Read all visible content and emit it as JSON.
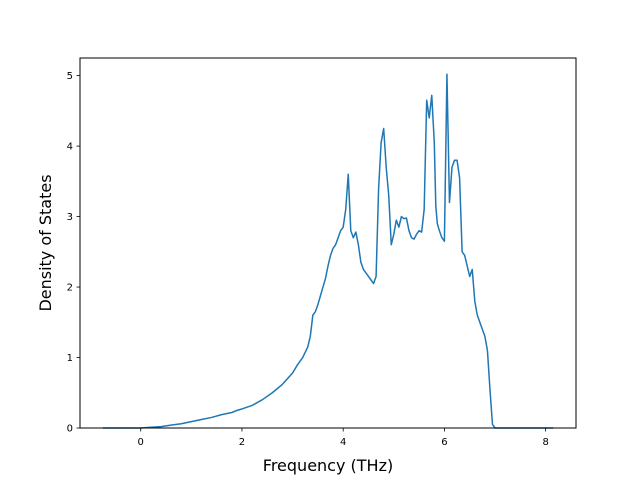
{
  "chart_data": {
    "type": "line",
    "title": "",
    "xlabel": "Frequency (THz)",
    "ylabel": "Density of States",
    "xlim": [
      -1.2,
      8.6
    ],
    "ylim": [
      0,
      5.25
    ],
    "xticks": [
      0,
      2,
      4,
      6,
      8
    ],
    "yticks": [
      0,
      1,
      2,
      3,
      4,
      5
    ],
    "grid": false,
    "legend": "none",
    "series": [
      {
        "color": "#1f77b4",
        "x": [
          -0.75,
          -0.4,
          -0.1,
          0.0,
          0.2,
          0.4,
          0.6,
          0.8,
          1.0,
          1.2,
          1.4,
          1.6,
          1.8,
          1.9,
          2.0,
          2.2,
          2.4,
          2.6,
          2.8,
          3.0,
          3.1,
          3.2,
          3.3,
          3.35,
          3.4,
          3.45,
          3.5,
          3.6,
          3.65,
          3.7,
          3.75,
          3.8,
          3.85,
          3.9,
          3.95,
          4.0,
          4.05,
          4.1,
          4.15,
          4.2,
          4.25,
          4.3,
          4.35,
          4.4,
          4.45,
          4.5,
          4.55,
          4.6,
          4.65,
          4.7,
          4.75,
          4.8,
          4.85,
          4.9,
          4.95,
          5.0,
          5.05,
          5.1,
          5.15,
          5.2,
          5.25,
          5.3,
          5.35,
          5.4,
          5.45,
          5.5,
          5.55,
          5.6,
          5.65,
          5.7,
          5.75,
          5.8,
          5.83,
          5.86,
          5.9,
          5.95,
          6.0,
          6.05,
          6.1,
          6.15,
          6.2,
          6.25,
          6.3,
          6.35,
          6.4,
          6.45,
          6.5,
          6.55,
          6.6,
          6.65,
          6.7,
          6.75,
          6.8,
          6.85,
          6.9,
          6.95,
          7.0,
          7.1,
          7.2,
          7.25,
          7.3,
          7.35,
          7.4,
          7.5,
          7.8,
          8.15
        ],
        "y": [
          0.0,
          0.0,
          0.0,
          0.0,
          0.01,
          0.02,
          0.04,
          0.06,
          0.09,
          0.12,
          0.15,
          0.19,
          0.22,
          0.25,
          0.27,
          0.32,
          0.4,
          0.5,
          0.62,
          0.78,
          0.9,
          1.0,
          1.15,
          1.3,
          1.6,
          1.65,
          1.75,
          2.0,
          2.12,
          2.3,
          2.45,
          2.55,
          2.6,
          2.7,
          2.8,
          2.85,
          3.1,
          3.6,
          2.8,
          2.7,
          2.78,
          2.6,
          2.35,
          2.25,
          2.2,
          2.15,
          2.1,
          2.05,
          2.15,
          3.4,
          4.05,
          4.25,
          3.7,
          3.3,
          2.6,
          2.75,
          2.95,
          2.85,
          3.0,
          2.97,
          2.98,
          2.8,
          2.7,
          2.68,
          2.75,
          2.8,
          2.78,
          3.1,
          4.65,
          4.4,
          4.72,
          4.05,
          3.15,
          2.9,
          2.8,
          2.7,
          2.65,
          5.02,
          3.2,
          3.7,
          3.8,
          3.8,
          3.55,
          2.5,
          2.45,
          2.3,
          2.15,
          2.25,
          1.8,
          1.6,
          1.5,
          1.4,
          1.3,
          1.1,
          0.55,
          0.05,
          0.0,
          0.0,
          0.0,
          0.0,
          0.0,
          0.0,
          0.0,
          0.0,
          0.0,
          0.0
        ]
      }
    ]
  }
}
